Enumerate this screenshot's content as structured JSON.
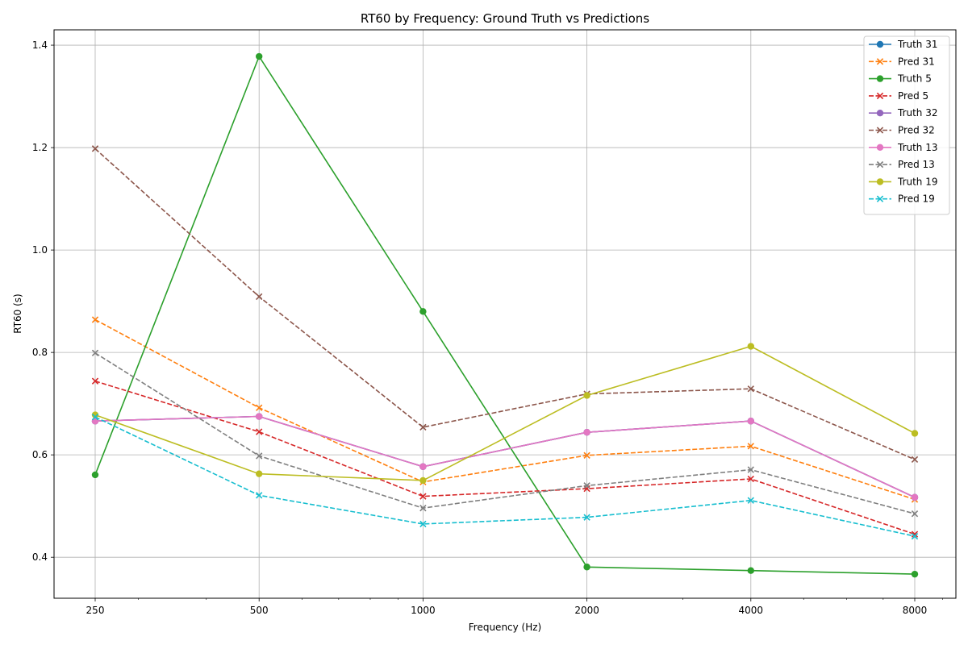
{
  "chart_data": {
    "type": "line",
    "title": "RT60 by Frequency: Ground Truth vs Predictions",
    "xlabel": "Frequency (Hz)",
    "ylabel": "RT60 (s)",
    "x_scale": "log",
    "x": [
      250,
      500,
      1000,
      2000,
      4000,
      8000
    ],
    "x_tick_labels": [
      "250",
      "500",
      "1000",
      "2000",
      "4000",
      "8000"
    ],
    "ylim": [
      0.32,
      1.43
    ],
    "y_ticks": [
      0.4,
      0.6,
      0.8,
      1.0,
      1.2,
      1.4
    ],
    "y_tick_labels": [
      "0.4",
      "0.6",
      "0.8",
      "1.0",
      "1.2",
      "1.4"
    ],
    "grid": true,
    "legend_position": "top-right",
    "series": [
      {
        "name": "Truth 31",
        "color": "#1f77b4",
        "style": "solid",
        "marker": "circle",
        "values": [
          0.666,
          0.675,
          0.577,
          0.644,
          0.666,
          0.517
        ]
      },
      {
        "name": "Pred 31",
        "color": "#ff7f0e",
        "style": "dashed",
        "marker": "x",
        "values": [
          0.864,
          0.692,
          0.547,
          0.599,
          0.617,
          0.513
        ]
      },
      {
        "name": "Truth 5",
        "color": "#2ca02c",
        "style": "solid",
        "marker": "circle",
        "values": [
          0.561,
          1.378,
          0.88,
          0.381,
          0.374,
          0.367
        ]
      },
      {
        "name": "Pred 5",
        "color": "#d62728",
        "style": "dashed",
        "marker": "x",
        "values": [
          0.744,
          0.645,
          0.519,
          0.534,
          0.553,
          0.445
        ]
      },
      {
        "name": "Truth 32",
        "color": "#9467bd",
        "style": "solid",
        "marker": "circle",
        "values": [
          0.666,
          0.675,
          0.577,
          0.644,
          0.666,
          0.517
        ]
      },
      {
        "name": "Pred 32",
        "color": "#8c564b",
        "style": "dashed",
        "marker": "x",
        "values": [
          1.198,
          0.909,
          0.654,
          0.719,
          0.729,
          0.591
        ]
      },
      {
        "name": "Truth 13",
        "color": "#e377c2",
        "style": "solid",
        "marker": "circle",
        "values": [
          0.666,
          0.675,
          0.577,
          0.644,
          0.666,
          0.517
        ]
      },
      {
        "name": "Pred 13",
        "color": "#7f7f7f",
        "style": "dashed",
        "marker": "x",
        "values": [
          0.799,
          0.598,
          0.496,
          0.54,
          0.571,
          0.485
        ]
      },
      {
        "name": "Truth 19",
        "color": "#bcbd22",
        "style": "solid",
        "marker": "circle",
        "values": [
          0.678,
          0.563,
          0.55,
          0.716,
          0.812,
          0.642
        ]
      },
      {
        "name": "Pred 19",
        "color": "#17becf",
        "style": "dashed",
        "marker": "x",
        "values": [
          0.674,
          0.521,
          0.465,
          0.478,
          0.511,
          0.441
        ]
      }
    ]
  }
}
